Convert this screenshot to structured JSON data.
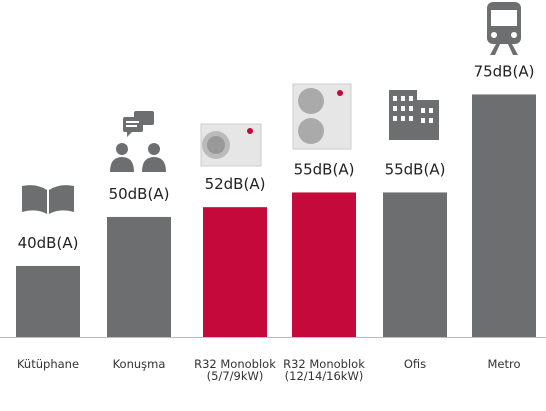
{
  "chart_data": {
    "type": "bar",
    "categories": [
      "Kütüphane",
      "Konuşma",
      "R32 Monoblok (5/7/9kW)",
      "R32 Monoblok (12/14/16kW)",
      "Ofis",
      "Metro"
    ],
    "values": [
      40,
      50,
      52,
      55,
      55,
      75
    ],
    "value_labels": [
      "40dB(A)",
      "50dB(A)",
      "52dB(A)",
      "55dB(A)",
      "55dB(A)",
      "75dB(A)"
    ],
    "colors": [
      "#6d6e70",
      "#6d6e70",
      "#c5093b",
      "#c5093b",
      "#6d6e70",
      "#6d6e70"
    ]
  }
}
